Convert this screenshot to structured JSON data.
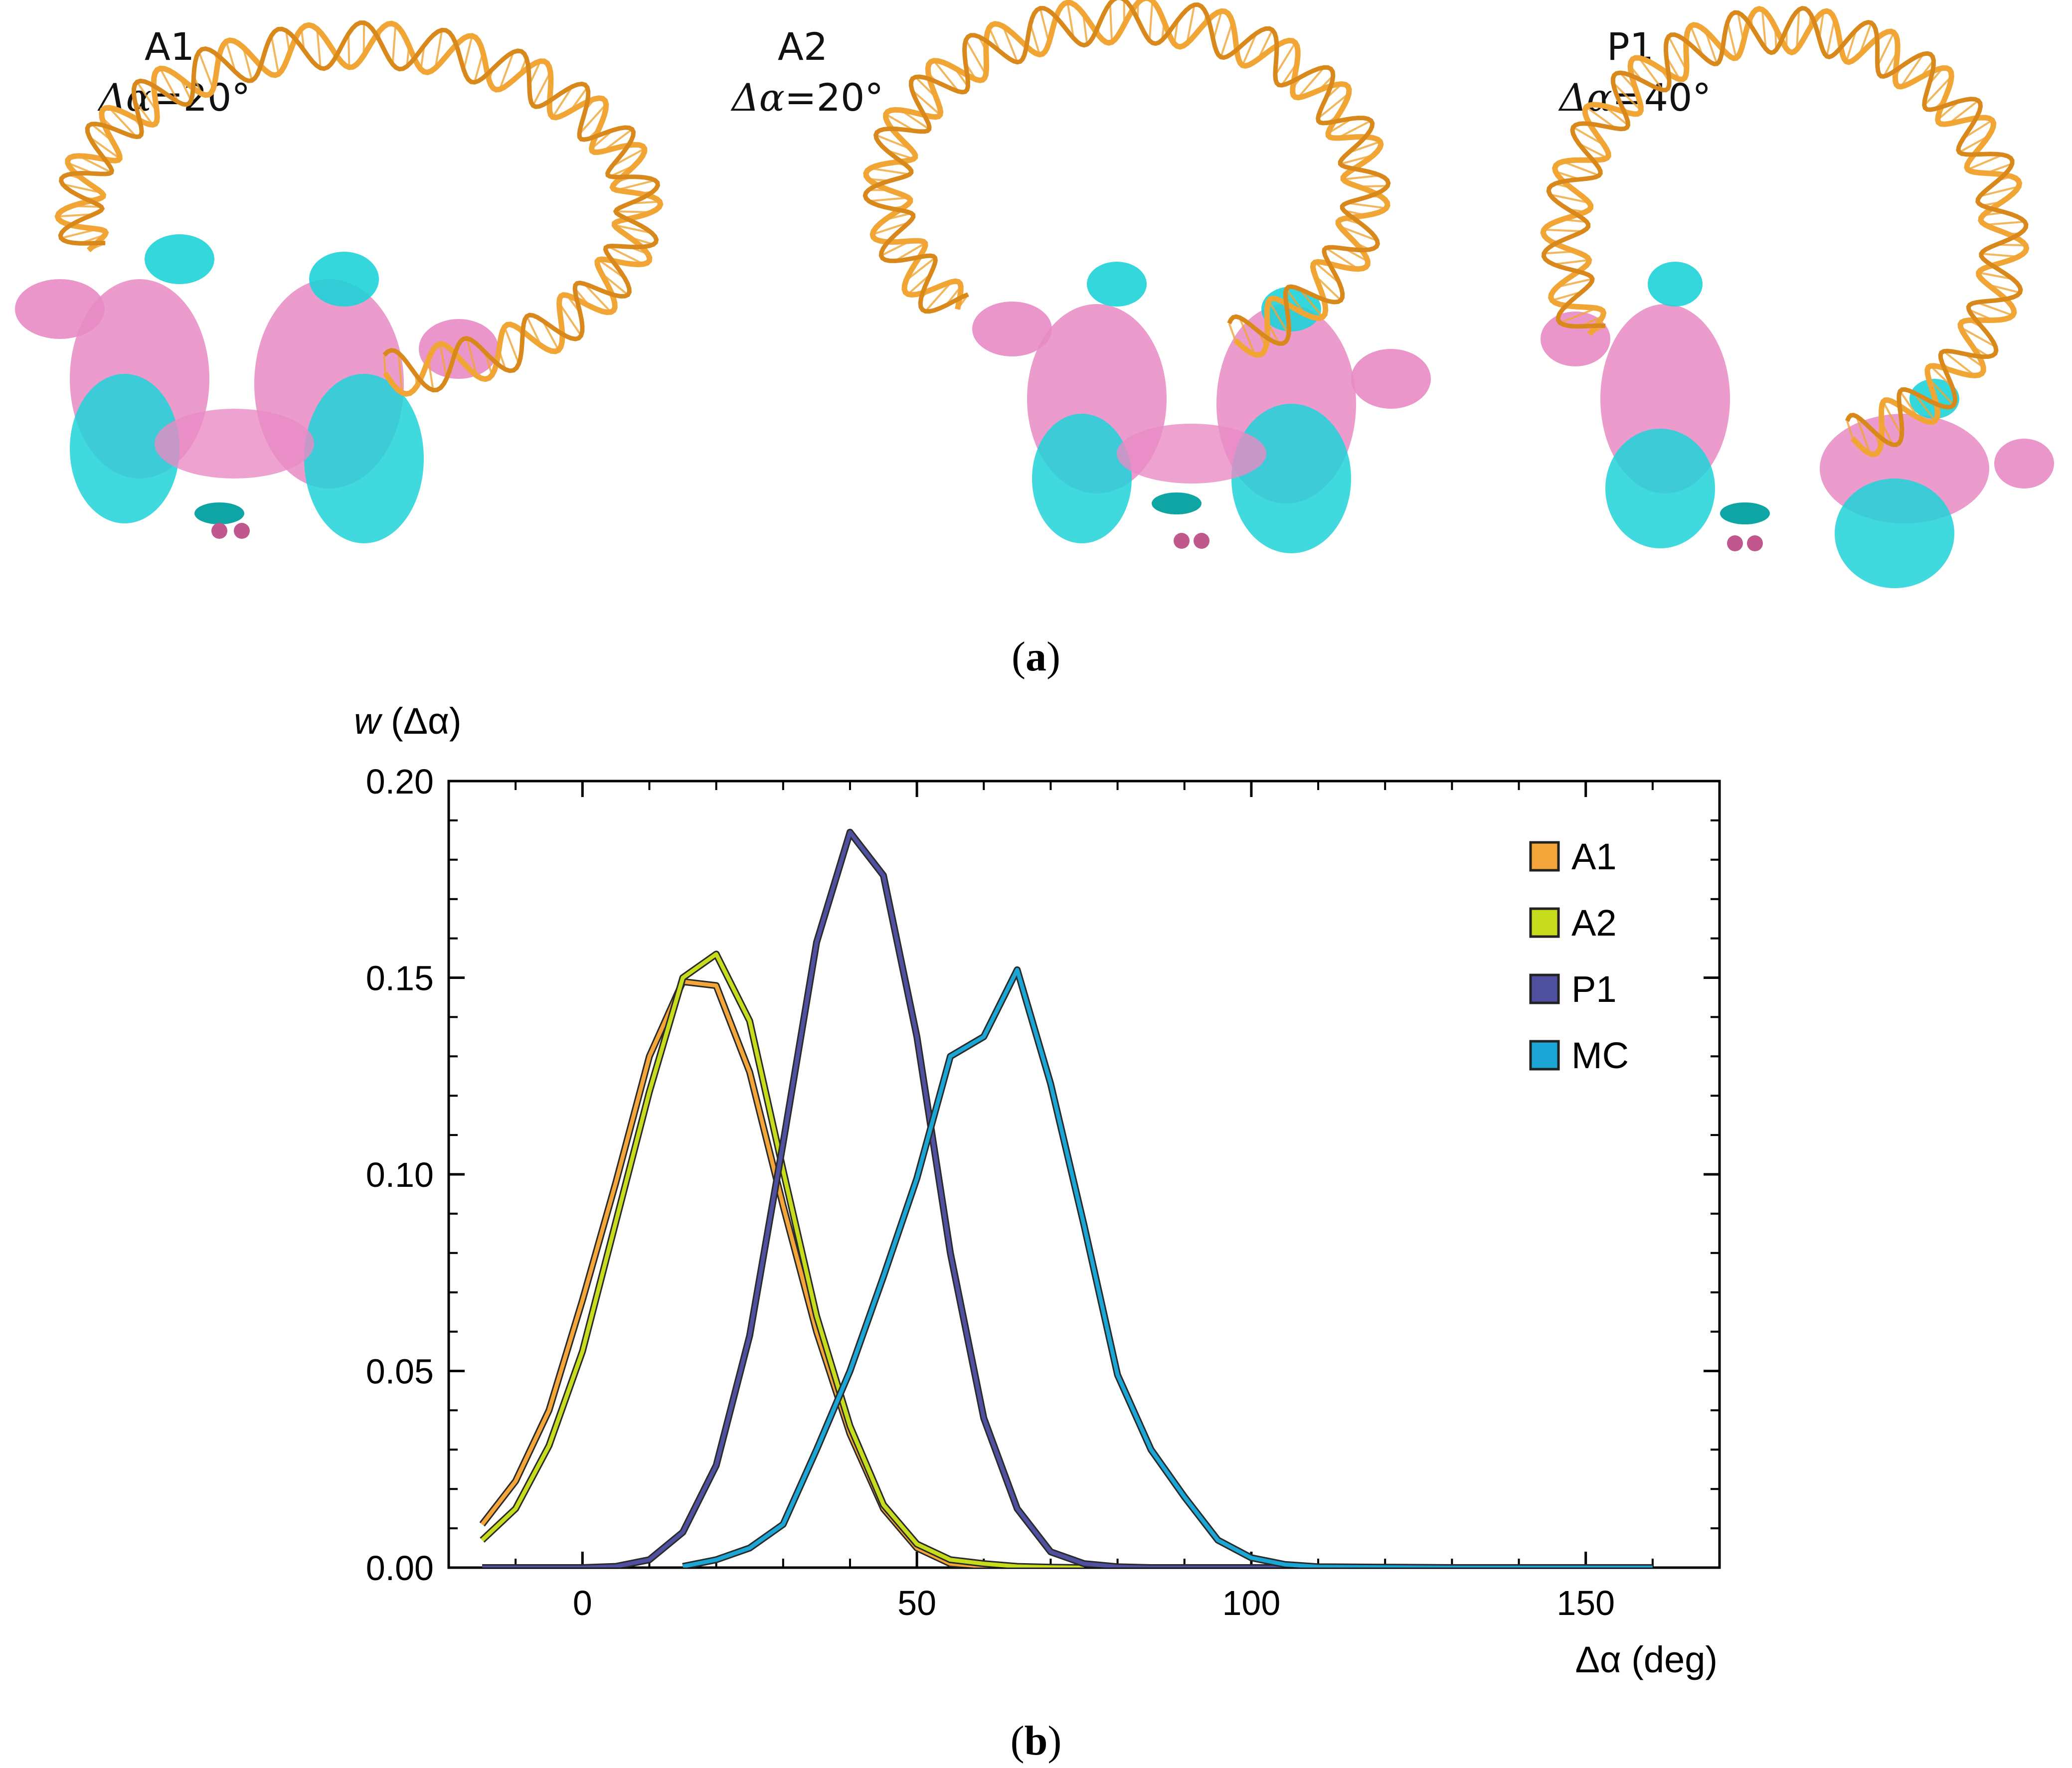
{
  "panel_a": {
    "label": "a",
    "structures": [
      {
        "name": "A1",
        "value_prefix": "Δα",
        "value_suffix": "=20°"
      },
      {
        "name": "A2",
        "value_prefix": "Δα",
        "value_suffix": "=20°"
      },
      {
        "name": "P1",
        "value_prefix": "Δα",
        "value_suffix": "=40°"
      }
    ],
    "colors": {
      "dna": "#F0A535",
      "protein_pink": "#E88BC4",
      "protein_cyan": "#1ED3D8",
      "helix_dark_pink": "#C0588E",
      "helix_dark_cyan": "#10A5A5"
    }
  },
  "panel_b": {
    "label": "b"
  },
  "chart_data": {
    "type": "line",
    "title": "",
    "ylabel_italic": "w",
    "ylabel_rest": " (Δα)",
    "xlabel": "Δα (deg)",
    "xlim": [
      -20,
      170
    ],
    "ylim": [
      0,
      0.2
    ],
    "xticks": [
      0,
      50,
      100,
      150
    ],
    "xtick_labels": [
      "0",
      "50",
      "100",
      "150"
    ],
    "yticks": [
      0,
      0.05,
      0.1,
      0.15,
      0.2
    ],
    "ytick_labels": [
      "0.00",
      "0.05",
      "0.10",
      "0.15",
      "0.20"
    ],
    "grid": false,
    "legend_position": "top-right",
    "series": [
      {
        "name": "A1",
        "color": "#F5A63A",
        "x": [
          -15,
          -10,
          -5,
          0,
          5,
          10,
          15,
          20,
          25,
          30,
          35,
          40,
          45,
          50,
          55,
          60,
          65
        ],
        "y": [
          0.011,
          0.022,
          0.04,
          0.068,
          0.098,
          0.13,
          0.149,
          0.148,
          0.126,
          0.092,
          0.06,
          0.034,
          0.015,
          0.005,
          0.001,
          0.0003,
          0.0
        ]
      },
      {
        "name": "A2",
        "color": "#C8DC1E",
        "x": [
          -15,
          -10,
          -5,
          0,
          5,
          10,
          15,
          20,
          25,
          30,
          35,
          40,
          45,
          50,
          55,
          60,
          65,
          70,
          75
        ],
        "y": [
          0.007,
          0.015,
          0.031,
          0.055,
          0.088,
          0.121,
          0.15,
          0.156,
          0.139,
          0.101,
          0.064,
          0.036,
          0.016,
          0.006,
          0.002,
          0.001,
          0.0003,
          0.0001,
          0.0
        ]
      },
      {
        "name": "P1",
        "color": "#5050A0",
        "x": [
          -15,
          -10,
          -5,
          0,
          5,
          10,
          15,
          20,
          25,
          30,
          35,
          40,
          45,
          50,
          55,
          60,
          65,
          70,
          75,
          80,
          85,
          90,
          100,
          110
        ],
        "y": [
          0,
          0,
          0,
          0,
          0.0003,
          0.002,
          0.009,
          0.026,
          0.059,
          0.108,
          0.159,
          0.187,
          0.176,
          0.135,
          0.08,
          0.038,
          0.015,
          0.004,
          0.001,
          0.0002,
          0,
          0,
          0,
          0
        ]
      },
      {
        "name": "MC",
        "color": "#1BA6D6",
        "x": [
          15,
          20,
          25,
          30,
          35,
          40,
          45,
          50,
          55,
          60,
          65,
          70,
          75,
          80,
          85,
          90,
          95,
          100,
          105,
          110,
          120,
          130,
          140,
          150,
          160
        ],
        "y": [
          0.0003,
          0.002,
          0.005,
          0.011,
          0.03,
          0.05,
          0.074,
          0.099,
          0.13,
          0.135,
          0.152,
          0.123,
          0.087,
          0.049,
          0.03,
          0.018,
          0.007,
          0.0025,
          0.0008,
          0.0002,
          0.0001,
          0,
          0,
          0,
          0
        ]
      }
    ]
  }
}
